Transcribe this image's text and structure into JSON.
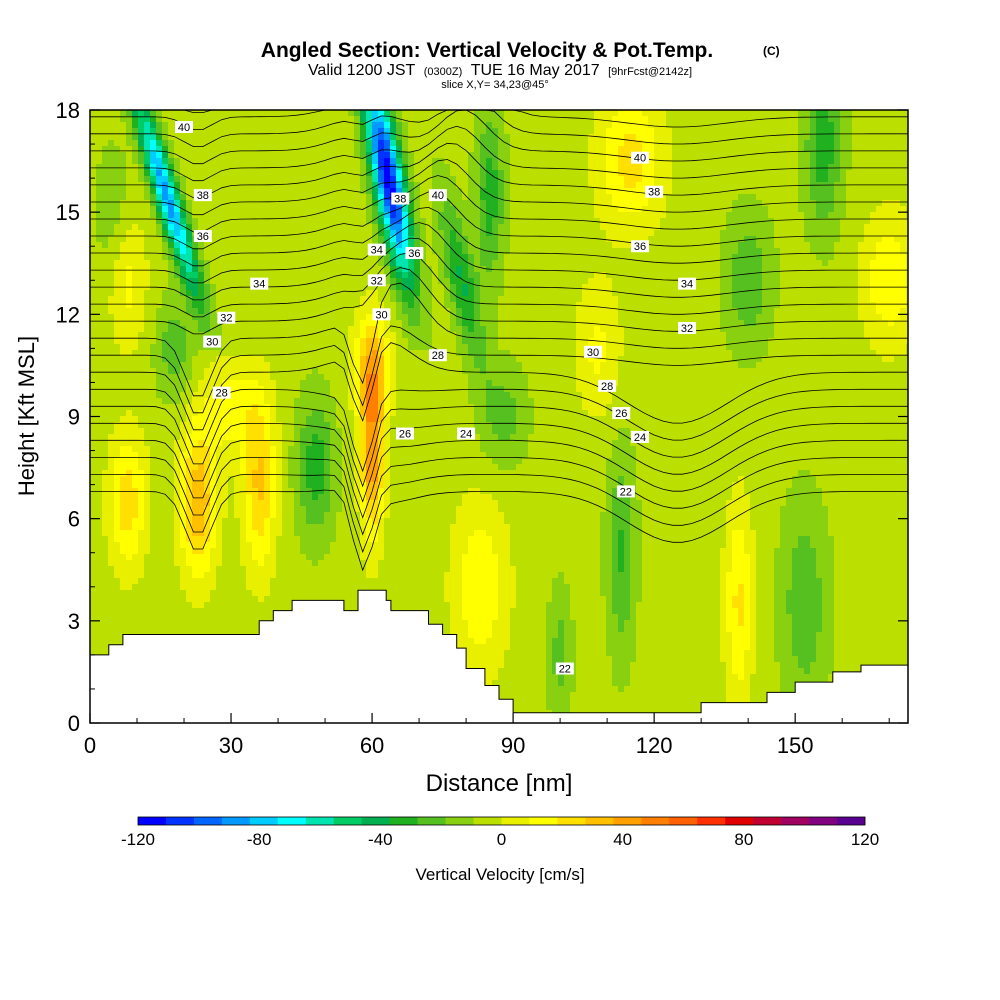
{
  "chart_data": {
    "type": "heatmap",
    "title": "Angled Section: Vertical Velocity & Pot.Temp.",
    "title_mark": "(C)",
    "subtitle": {
      "prefix": "Valid 1200 JST",
      "utc": "(0300Z)",
      "date": "TUE 16 May 2017",
      "fcst": "[9hrFcst@2142z]"
    },
    "slice_label": "slice X,Y= 34,23@45°",
    "xlabel": "Distance [nm]",
    "ylabel": "Height [Kft MSL]",
    "xlim": [
      0,
      174
    ],
    "ylim": [
      0,
      18
    ],
    "xticks": [
      0,
      30,
      60,
      90,
      120,
      150
    ],
    "yticks": [
      0,
      3,
      6,
      9,
      12,
      15,
      18
    ],
    "colorbar": {
      "label": "Vertical Velocity [cm/s]",
      "range": [
        -120,
        120
      ],
      "step": 10,
      "tick_values": [
        -120,
        -80,
        -40,
        0,
        40,
        80,
        120
      ],
      "colors": [
        "#0000ff",
        "#0033ff",
        "#0066ff",
        "#0099ff",
        "#00ccff",
        "#00ffff",
        "#00e5b0",
        "#00cc66",
        "#00b050",
        "#20b020",
        "#55c020",
        "#88d010",
        "#bbe000",
        "#e8f000",
        "#ffff00",
        "#ffe000",
        "#ffc000",
        "#ffa000",
        "#ff8000",
        "#ff6000",
        "#ff3000",
        "#e00000",
        "#c00030",
        "#a00060",
        "#800080",
        "#5a0090"
      ]
    },
    "contour_labels": [
      {
        "text": "40",
        "x": 20,
        "y": 17.5
      },
      {
        "text": "38",
        "x": 24,
        "y": 15.5
      },
      {
        "text": "36",
        "x": 24,
        "y": 14.3
      },
      {
        "text": "34",
        "x": 36,
        "y": 12.9
      },
      {
        "text": "32",
        "x": 29,
        "y": 11.9
      },
      {
        "text": "30",
        "x": 26,
        "y": 11.2
      },
      {
        "text": "28",
        "x": 28,
        "y": 9.7
      },
      {
        "text": "34",
        "x": 61,
        "y": 13.9
      },
      {
        "text": "32",
        "x": 61,
        "y": 13.0
      },
      {
        "text": "30",
        "x": 62,
        "y": 12.0
      },
      {
        "text": "38",
        "x": 66,
        "y": 15.4
      },
      {
        "text": "36",
        "x": 69,
        "y": 13.8
      },
      {
        "text": "40",
        "x": 74,
        "y": 15.5
      },
      {
        "text": "28",
        "x": 74,
        "y": 10.8
      },
      {
        "text": "26",
        "x": 67,
        "y": 8.5
      },
      {
        "text": "24",
        "x": 80,
        "y": 8.5
      },
      {
        "text": "40",
        "x": 117,
        "y": 16.6
      },
      {
        "text": "38",
        "x": 120,
        "y": 15.6
      },
      {
        "text": "36",
        "x": 117,
        "y": 14.0
      },
      {
        "text": "34",
        "x": 127,
        "y": 12.9
      },
      {
        "text": "32",
        "x": 127,
        "y": 11.6
      },
      {
        "text": "30",
        "x": 107,
        "y": 10.9
      },
      {
        "text": "28",
        "x": 110,
        "y": 9.9
      },
      {
        "text": "26",
        "x": 113,
        "y": 9.1
      },
      {
        "text": "24",
        "x": 117,
        "y": 8.4
      },
      {
        "text": "22",
        "x": 114,
        "y": 6.8
      },
      {
        "text": "22",
        "x": 101,
        "y": 1.6
      }
    ]
  }
}
